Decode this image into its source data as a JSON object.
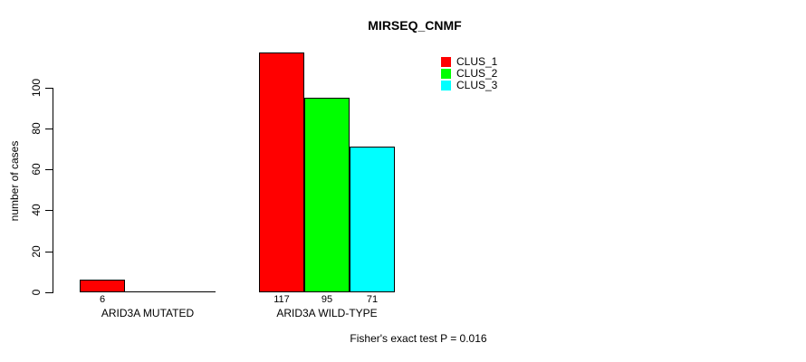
{
  "title": "MIRSEQ_CNMF",
  "footnote": "Fisher's exact test P = 0.016",
  "y_axis": {
    "label": "number of cases",
    "ticks": [
      0,
      20,
      40,
      60,
      80,
      100
    ]
  },
  "legend": {
    "items": [
      {
        "label": "CLUS_1",
        "color": "#FF0000"
      },
      {
        "label": "CLUS_2",
        "color": "#00FF00"
      },
      {
        "label": "CLUS_3",
        "color": "#00FFFF"
      }
    ]
  },
  "chart_data": {
    "type": "bar",
    "title": "MIRSEQ_CNMF",
    "xlabel": "",
    "ylabel": "number of cases",
    "ylim": [
      0,
      120
    ],
    "y_ticks": [
      0,
      20,
      40,
      60,
      80,
      100
    ],
    "categories": [
      "ARID3A MUTATED",
      "ARID3A WILD-TYPE"
    ],
    "series": [
      {
        "name": "CLUS_1",
        "color": "#FF0000",
        "values": [
          6,
          117
        ]
      },
      {
        "name": "CLUS_2",
        "color": "#00FF00",
        "values": [
          0,
          95
        ]
      },
      {
        "name": "CLUS_3",
        "color": "#00FFFF",
        "values": [
          0,
          71
        ]
      }
    ],
    "bar_value_labels": [
      [
        "6",
        "",
        ""
      ],
      [
        "117",
        "95",
        "71"
      ]
    ],
    "annotation": "Fisher's exact test P = 0.016",
    "legend_position": "top-right",
    "grid": false,
    "bar_border_color": "#000000",
    "background_color": "#FFFFFF"
  }
}
